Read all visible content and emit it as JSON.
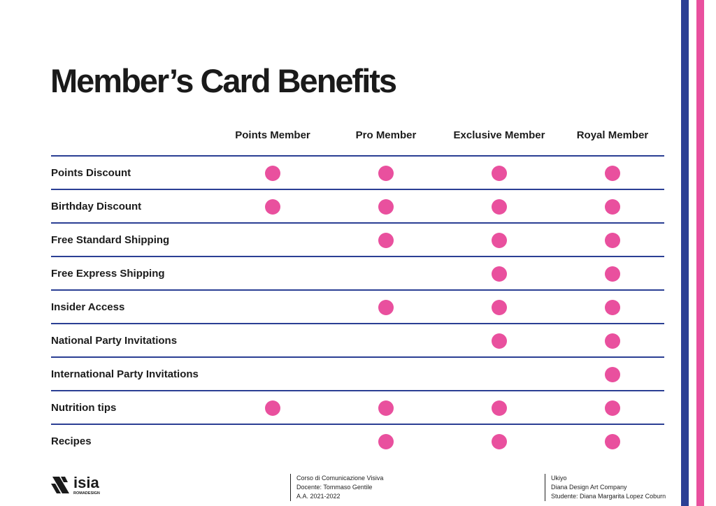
{
  "title": "Member’s Card Benefits",
  "columns": [
    "Points Member",
    "Pro Member",
    "Exclusive Member",
    "Royal Member"
  ],
  "rows": [
    {
      "label": "Points Discount",
      "marks": [
        1,
        1,
        1,
        1
      ]
    },
    {
      "label": "Birthday Discount",
      "marks": [
        1,
        1,
        1,
        1
      ]
    },
    {
      "label": "Free Standard Shipping",
      "marks": [
        0,
        1,
        1,
        1
      ]
    },
    {
      "label": "Free Express Shipping",
      "marks": [
        0,
        0,
        1,
        1
      ]
    },
    {
      "label": "Insider Access",
      "marks": [
        0,
        1,
        1,
        1
      ]
    },
    {
      "label": "National Party Invitations",
      "marks": [
        0,
        0,
        1,
        1
      ]
    },
    {
      "label": "International Party Invitations",
      "marks": [
        0,
        0,
        0,
        1
      ]
    },
    {
      "label": "Nutrition tips",
      "marks": [
        1,
        1,
        1,
        1
      ]
    },
    {
      "label": "Recipes",
      "marks": [
        0,
        1,
        1,
        1
      ]
    }
  ],
  "footer": {
    "logo": {
      "name": "ISIA",
      "sub": "ROMADESIGN"
    },
    "course": [
      "Corso di Comunicazione Visiva",
      "Docente: Tommaso Gentile",
      "A.A. 2021-2022"
    ],
    "project": [
      "Ukiyo",
      "Diana Design Art Company",
      "Studente: Diana Margarita Lopez Coburn"
    ]
  },
  "colors": {
    "blue": "#2b3f94",
    "pink": "#e9509e"
  }
}
